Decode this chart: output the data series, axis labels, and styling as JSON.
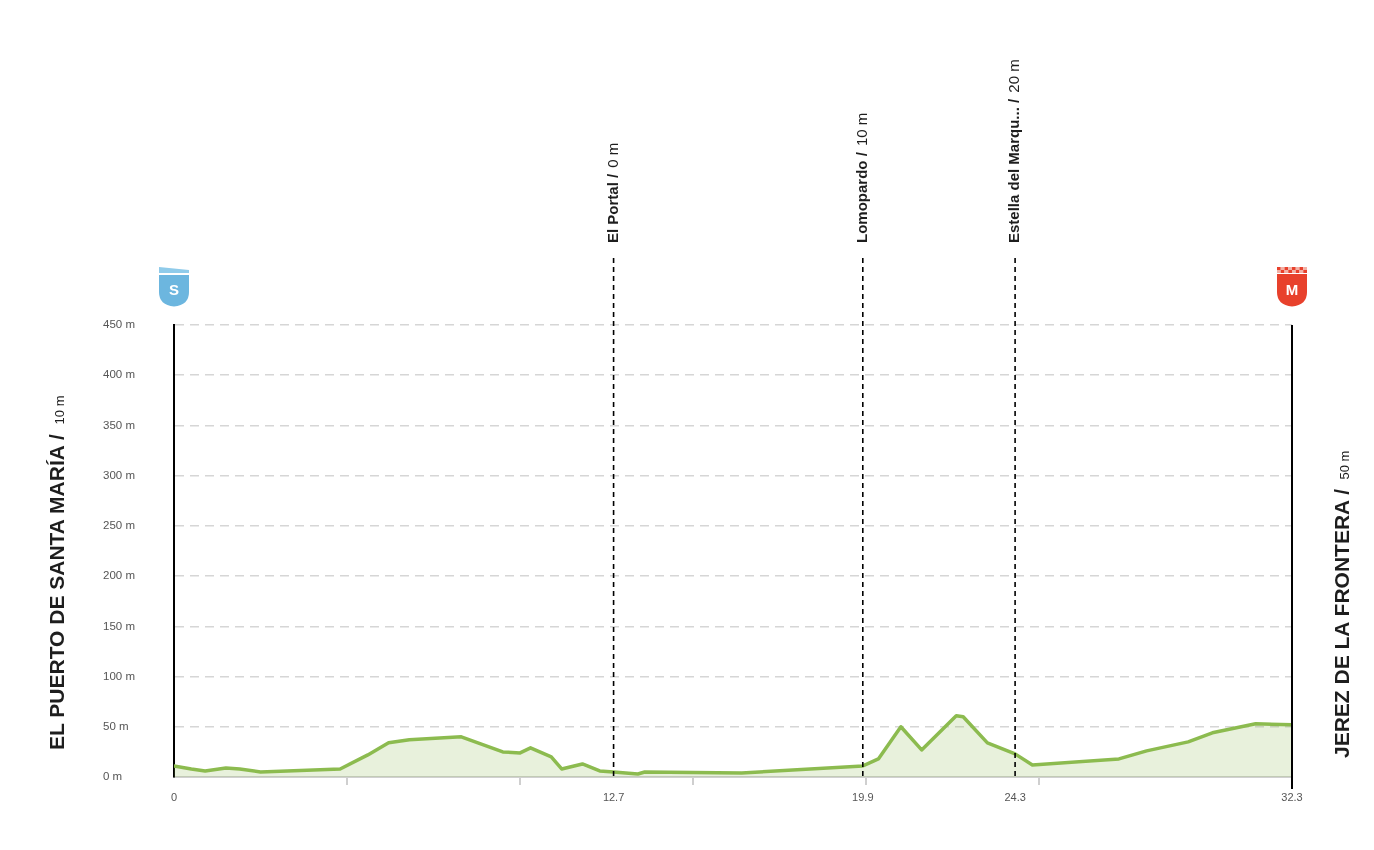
{
  "chart_data": {
    "type": "area",
    "x": [
      0,
      0.5,
      0.9,
      1.5,
      1.9,
      2.5,
      4.8,
      5.6,
      6.2,
      6.8,
      8.3,
      9.5,
      10.0,
      10.3,
      10.9,
      11.2,
      11.8,
      12.3,
      12.7,
      13.4,
      13.6,
      16.4,
      19.9,
      20.35,
      21.0,
      21.6,
      22.6,
      22.8,
      23.5,
      24.3,
      24.8,
      27.3,
      28.1,
      29.3,
      30.0,
      31.25,
      32.3
    ],
    "values": [
      11,
      8,
      6,
      9,
      8,
      5,
      8,
      22,
      34,
      37,
      40,
      25,
      24,
      29,
      20,
      8,
      13,
      6,
      5,
      3,
      5,
      4,
      11,
      18,
      50,
      27,
      61,
      60,
      34,
      23,
      12,
      18,
      26,
      35,
      44,
      53,
      52
    ],
    "color": "#8cbb4f",
    "xlim": [
      0,
      32.3
    ],
    "ylim": [
      0,
      450
    ],
    "xticks": [
      0,
      {
        "value": 5,
        "label": null
      },
      {
        "value": 10,
        "label": null
      },
      12.7,
      {
        "value": 15,
        "label": null
      },
      19.9,
      {
        "value": 20,
        "label": null
      },
      24.3,
      {
        "value": 25,
        "label": null
      },
      32.3
    ],
    "yticks": [
      {
        "value": 0,
        "label": "0 m"
      },
      {
        "value": 50,
        "label": "50 m"
      },
      {
        "value": 100,
        "label": "100 m"
      },
      {
        "value": 150,
        "label": "150 m"
      },
      {
        "value": 200,
        "label": "200 m"
      },
      {
        "value": 250,
        "label": "250 m"
      },
      {
        "value": 300,
        "label": "300 m"
      },
      {
        "value": 350,
        "label": "350 m"
      },
      {
        "value": 400,
        "label": "400 m"
      },
      {
        "value": 450,
        "label": "450 m"
      }
    ],
    "ylabel": "EL PUERTO DE SANTA MARÍA / 10 m",
    "y2label": "JEREZ DE LA FRONTERA / 50 m",
    "ref_lines": [
      {
        "axis": "x",
        "value": 12.7,
        "label": "El Portal / 0 m",
        "color": "#000000",
        "line_style": "dashed"
      },
      {
        "axis": "x",
        "value": 19.9,
        "label": "Lomopardo / 10 m",
        "color": "#000000",
        "line_style": "dashed"
      },
      {
        "axis": "x",
        "value": 24.3,
        "label": "Estella del Marqu... / 20 m",
        "color": "#000000",
        "line_style": "dashed"
      }
    ],
    "annotations": [
      "S",
      "M"
    ],
    "grid": "y"
  }
}
